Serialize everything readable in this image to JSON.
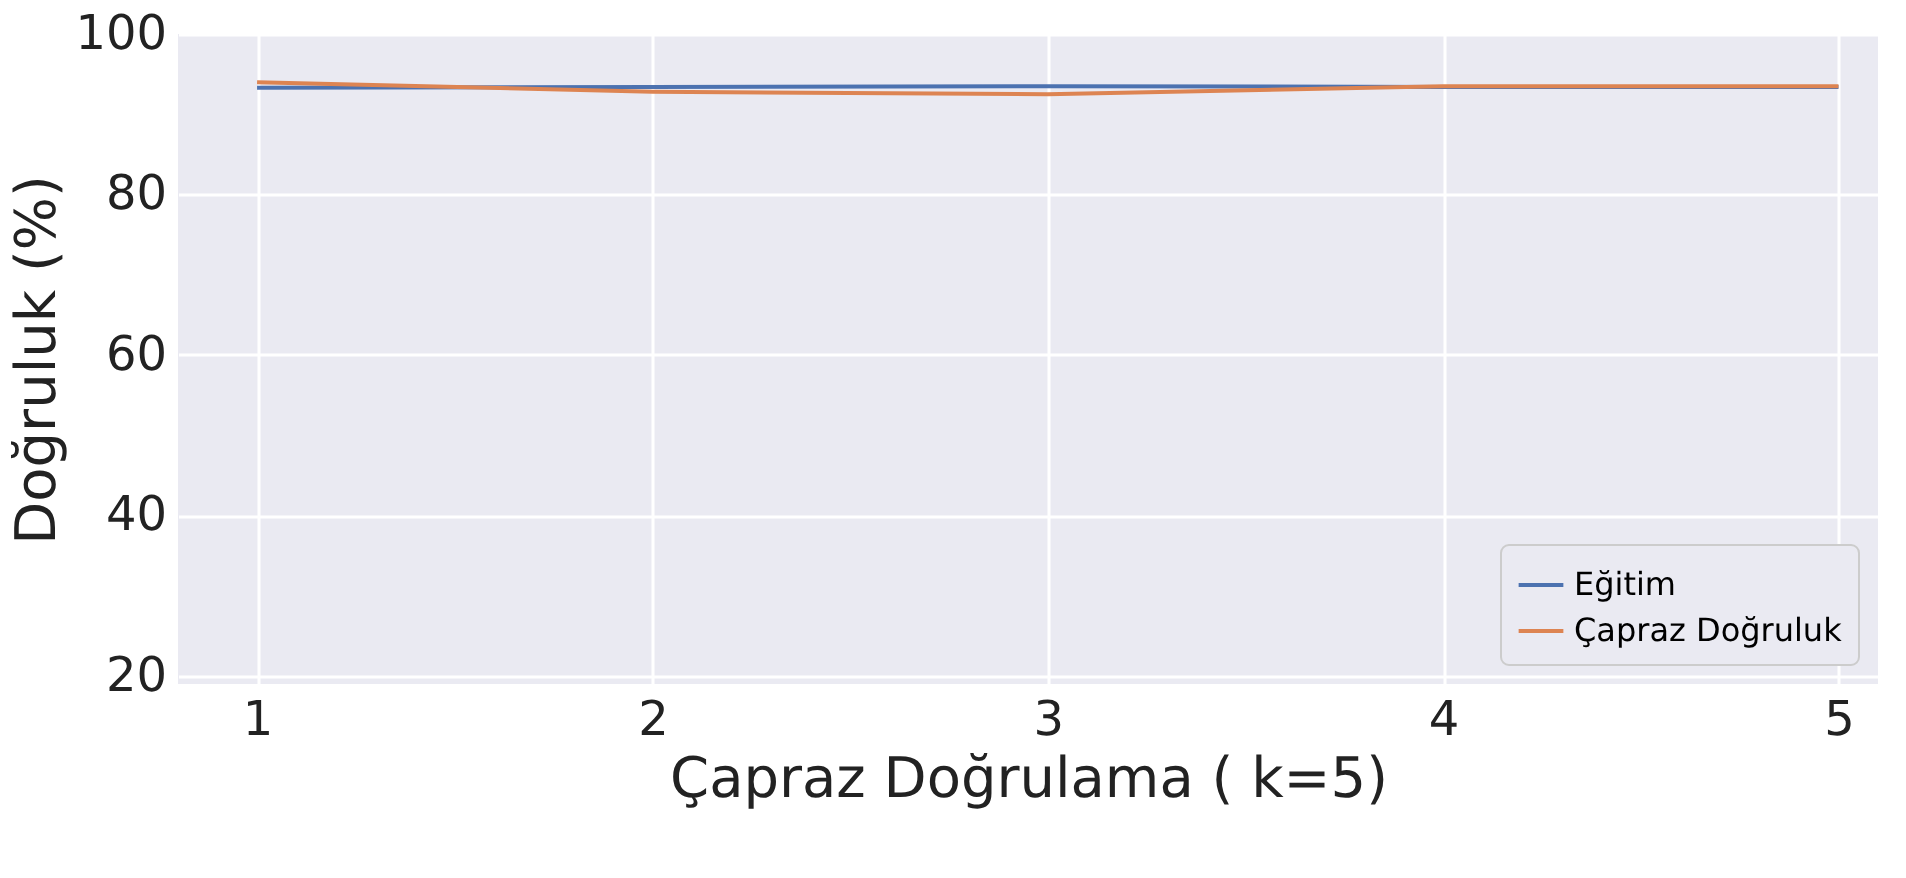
{
  "chart_data": {
    "type": "line",
    "xlabel": "Çapraz Doğrulama ( k=5)",
    "ylabel": "Doğruluk (%)",
    "x": [
      1,
      2,
      3,
      4,
      5
    ],
    "xlim": [
      0.8,
      5.1
    ],
    "xticks": [
      1,
      2,
      3,
      4,
      5
    ],
    "ylim": [
      19,
      100
    ],
    "yticks": [
      20,
      40,
      60,
      80,
      100
    ],
    "grid": true,
    "legend": "bottom right",
    "series": [
      {
        "name": "Eğitim",
        "color": "#4c72b0",
        "values": [
          93.3,
          93.4,
          93.5,
          93.4,
          93.4
        ]
      },
      {
        "name": "Çapraz Doğruluk",
        "color": "#dd8452",
        "values": [
          94,
          92.8,
          92.5,
          93.5,
          93.5
        ]
      }
    ]
  }
}
